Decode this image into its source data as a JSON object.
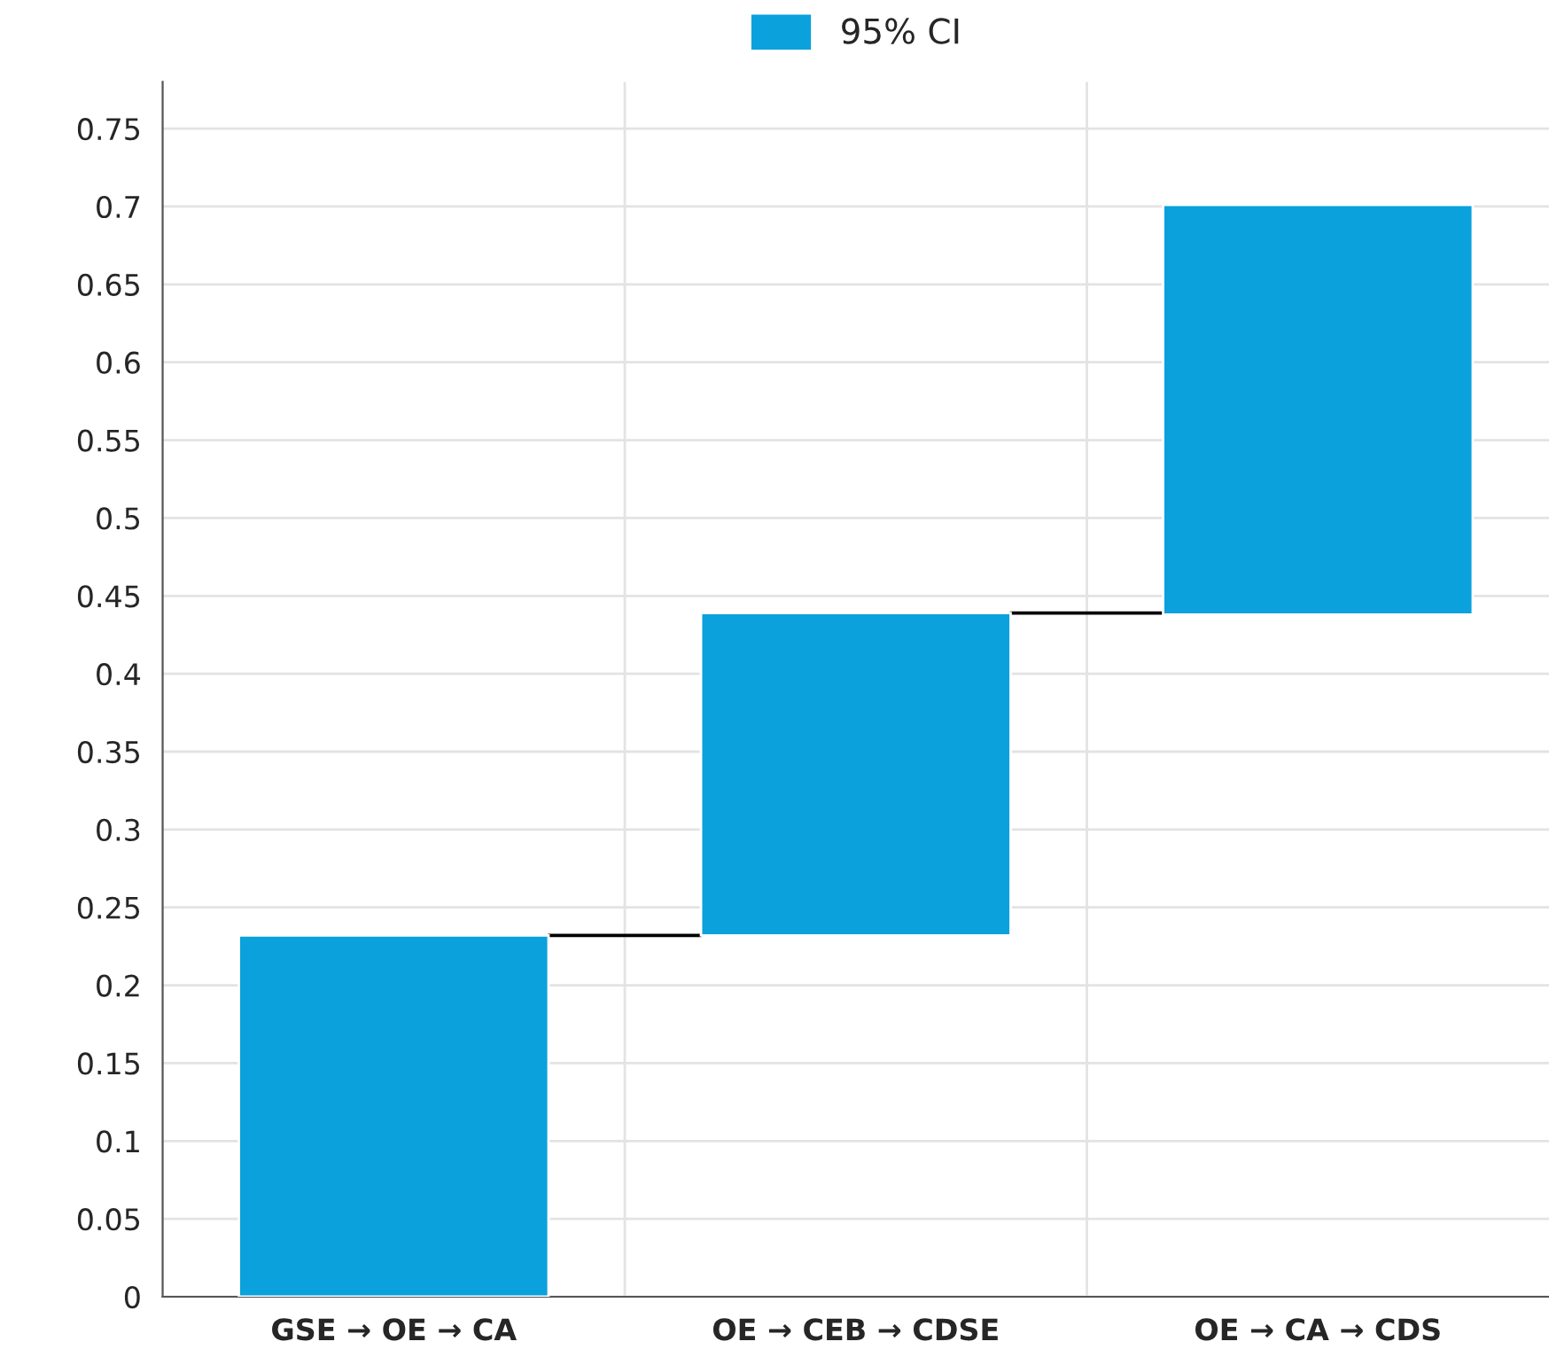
{
  "chart_data": {
    "type": "bar",
    "categories": [
      "GSE → OE → CA",
      "OE → CEB → CDSE",
      "OE → CA → CDS"
    ],
    "series": [
      {
        "name": "95% CI",
        "color": "#0aa1dc",
        "values": [
          0.232,
          0.207,
          0.263
        ],
        "base": [
          0,
          0.232,
          0.438
        ]
      }
    ],
    "ylim": [
      0,
      0.78
    ],
    "yticks": [
      0,
      0.05,
      0.1,
      0.15,
      0.2,
      0.25,
      0.3,
      0.35,
      0.4,
      0.45,
      0.5,
      0.55,
      0.6,
      0.65,
      0.7,
      0.75
    ],
    "grid": true,
    "legend": "top"
  }
}
